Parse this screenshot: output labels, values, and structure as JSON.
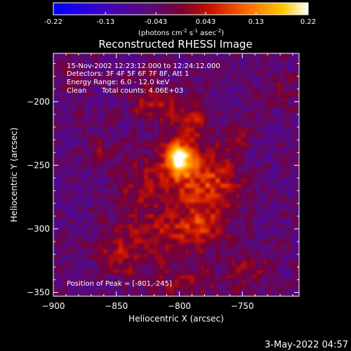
{
  "chart_data": {
    "type": "heatmap",
    "title": "Reconstructed RHESSI Image",
    "xlabel": "Heliocentric X (arcsec)",
    "ylabel": "Heliocentric Y (arcsec)",
    "xlim": [
      -900,
      -705
    ],
    "ylim": [
      -353,
      -162
    ],
    "xticks": [
      -900,
      -850,
      -800,
      -750
    ],
    "yticks": [
      -350,
      -300,
      -250,
      -200
    ],
    "colorbar": {
      "min": -0.22,
      "max": 0.22,
      "ticks": [
        "-0.22",
        "-0.13",
        "-0.043",
        "0.043",
        "0.13",
        "0.22"
      ],
      "tick_values": [
        -0.22,
        -0.13,
        -0.043,
        0.043,
        0.13,
        0.22
      ],
      "label_main": "(photons cm",
      "label_exp1": "-2",
      "label_mid1": " s",
      "label_exp2": "-1",
      "label_mid2": " asec",
      "label_exp3": "-2",
      "label_end": ")"
    },
    "peak": {
      "x": -801,
      "y": -245,
      "value": 0.22
    },
    "blobs": [
      {
        "x": -801,
        "y": -245,
        "sx": 7,
        "sy": 9,
        "amp": 0.24
      },
      {
        "x": -795,
        "y": -258,
        "sx": 20,
        "sy": 24,
        "amp": 0.09
      },
      {
        "x": -818,
        "y": -200,
        "sx": 14,
        "sy": 10,
        "amp": 0.08
      },
      {
        "x": -790,
        "y": -215,
        "sx": 9,
        "sy": 8,
        "amp": 0.07
      },
      {
        "x": -770,
        "y": -265,
        "sx": 14,
        "sy": 18,
        "amp": 0.07
      },
      {
        "x": -835,
        "y": -265,
        "sx": 10,
        "sy": 14,
        "amp": 0.06
      },
      {
        "x": -815,
        "y": -305,
        "sx": 30,
        "sy": 14,
        "amp": 0.07
      },
      {
        "x": -783,
        "y": -297,
        "sx": 10,
        "sy": 8,
        "amp": 0.06
      },
      {
        "x": -848,
        "y": -322,
        "sx": 12,
        "sy": 12,
        "amp": 0.06
      },
      {
        "x": -792,
        "y": -342,
        "sx": 24,
        "sy": 10,
        "amp": 0.05
      },
      {
        "x": -860,
        "y": -240,
        "sx": 8,
        "sy": 10,
        "amp": 0.05
      },
      {
        "x": -752,
        "y": -225,
        "sx": 10,
        "sy": 8,
        "amp": 0.04
      },
      {
        "x": -745,
        "y": -330,
        "sx": 12,
        "sy": 10,
        "amp": 0.05
      },
      {
        "x": -830,
        "y": -180,
        "sx": 8,
        "sy": 6,
        "amp": 0.04
      },
      {
        "x": -720,
        "y": -190,
        "sx": 10,
        "sy": 10,
        "amp": 0.04
      },
      {
        "x": -885,
        "y": -180,
        "sx": 10,
        "sy": 10,
        "amp": 0.03
      }
    ],
    "background": -0.05
  },
  "annotations": {
    "line1": "15-Nov-2002 12:23:12.000 to 12:24:12.000",
    "line2": "Detectors: 3F 4F 5F 6F 7F 8F, Att 1",
    "line3": "Energy Range: 6.0 - 12.0 keV",
    "line4_a": "Clean",
    "line4_b": "Total counts: 4.06E+03",
    "peak_label": "Position of Peak = [-801,-245]"
  },
  "footer": {
    "timestamp": "3-May-2022 04:57"
  }
}
